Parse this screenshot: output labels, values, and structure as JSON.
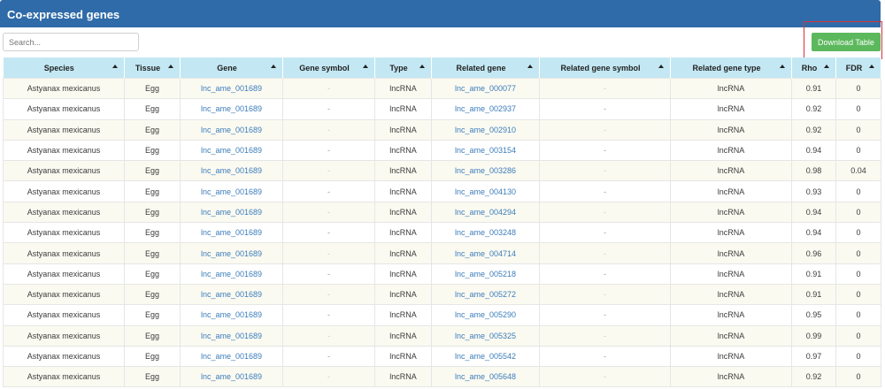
{
  "panel": {
    "title": "Co-expressed genes"
  },
  "search": {
    "placeholder": "Search..."
  },
  "download_label": "Download Table",
  "columns": [
    "Species",
    "Tissue",
    "Gene",
    "Gene symbol",
    "Type",
    "Related gene",
    "Related gene symbol",
    "Related gene type",
    "Rho",
    "FDR"
  ],
  "rows": [
    [
      "Astyanax mexicanus",
      "Egg",
      "lnc_ame_001689",
      "-",
      "lncRNA",
      "lnc_ame_000077",
      "-",
      "lncRNA",
      "0.91",
      "0"
    ],
    [
      "Astyanax mexicanus",
      "Egg",
      "lnc_ame_001689",
      "-",
      "lncRNA",
      "lnc_ame_002937",
      "-",
      "lncRNA",
      "0.92",
      "0"
    ],
    [
      "Astyanax mexicanus",
      "Egg",
      "lnc_ame_001689",
      "-",
      "lncRNA",
      "lnc_ame_002910",
      "-",
      "lncRNA",
      "0.92",
      "0"
    ],
    [
      "Astyanax mexicanus",
      "Egg",
      "lnc_ame_001689",
      "-",
      "lncRNA",
      "lnc_ame_003154",
      "-",
      "lncRNA",
      "0.94",
      "0"
    ],
    [
      "Astyanax mexicanus",
      "Egg",
      "lnc_ame_001689",
      "-",
      "lncRNA",
      "lnc_ame_003286",
      "-",
      "lncRNA",
      "0.98",
      "0.04"
    ],
    [
      "Astyanax mexicanus",
      "Egg",
      "lnc_ame_001689",
      "-",
      "lncRNA",
      "lnc_ame_004130",
      "-",
      "lncRNA",
      "0.93",
      "0"
    ],
    [
      "Astyanax mexicanus",
      "Egg",
      "lnc_ame_001689",
      "-",
      "lncRNA",
      "lnc_ame_004294",
      "-",
      "lncRNA",
      "0.94",
      "0"
    ],
    [
      "Astyanax mexicanus",
      "Egg",
      "lnc_ame_001689",
      "-",
      "lncRNA",
      "lnc_ame_003248",
      "-",
      "lncRNA",
      "0.94",
      "0"
    ],
    [
      "Astyanax mexicanus",
      "Egg",
      "lnc_ame_001689",
      "-",
      "lncRNA",
      "lnc_ame_004714",
      "-",
      "lncRNA",
      "0.96",
      "0"
    ],
    [
      "Astyanax mexicanus",
      "Egg",
      "lnc_ame_001689",
      "-",
      "lncRNA",
      "lnc_ame_005218",
      "-",
      "lncRNA",
      "0.91",
      "0"
    ],
    [
      "Astyanax mexicanus",
      "Egg",
      "lnc_ame_001689",
      "-",
      "lncRNA",
      "lnc_ame_005272",
      "-",
      "lncRNA",
      "0.91",
      "0"
    ],
    [
      "Astyanax mexicanus",
      "Egg",
      "lnc_ame_001689",
      "-",
      "lncRNA",
      "lnc_ame_005290",
      "-",
      "lncRNA",
      "0.95",
      "0"
    ],
    [
      "Astyanax mexicanus",
      "Egg",
      "lnc_ame_001689",
      "-",
      "lncRNA",
      "lnc_ame_005325",
      "-",
      "lncRNA",
      "0.99",
      "0"
    ],
    [
      "Astyanax mexicanus",
      "Egg",
      "lnc_ame_001689",
      "-",
      "lncRNA",
      "lnc_ame_005542",
      "-",
      "lncRNA",
      "0.97",
      "0"
    ],
    [
      "Astyanax mexicanus",
      "Egg",
      "lnc_ame_001689",
      "-",
      "lncRNA",
      "lnc_ame_005648",
      "-",
      "lncRNA",
      "0.92",
      "0"
    ]
  ]
}
